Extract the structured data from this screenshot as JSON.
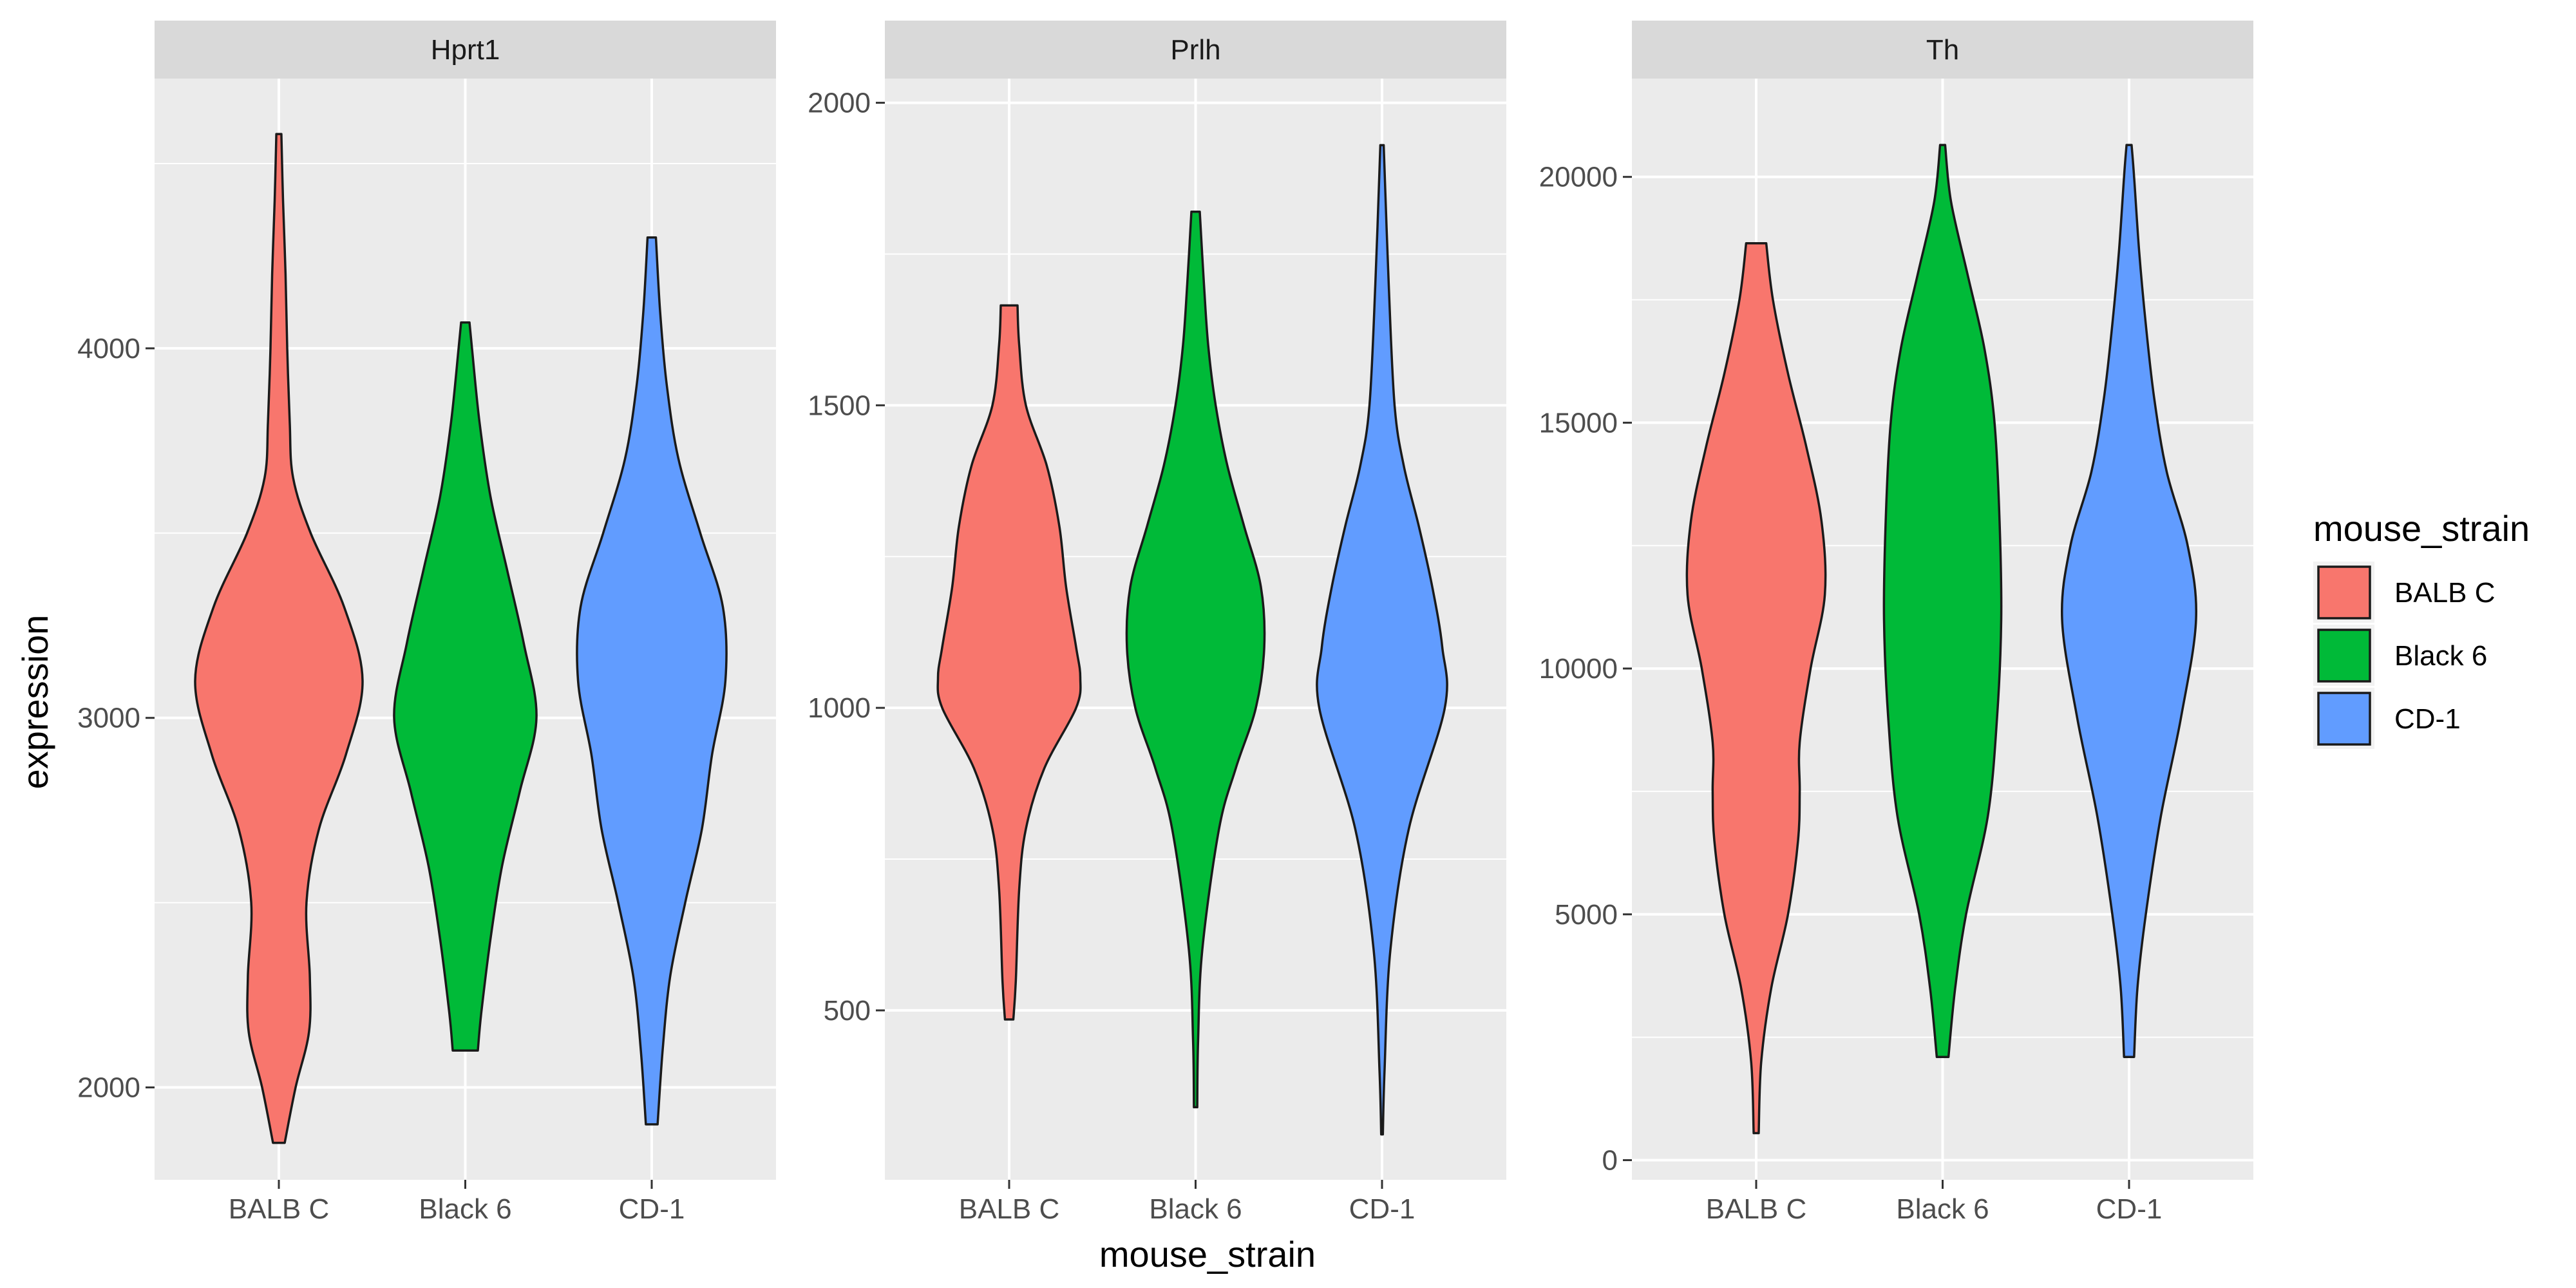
{
  "chart_data": {
    "type": "violin",
    "x_label": "mouse_strain",
    "y_label": "expression",
    "categories": [
      "BALB C",
      "Black 6",
      "CD-1"
    ],
    "legend": {
      "title": "mouse_strain",
      "position": "right",
      "items": [
        {
          "label": "BALB C",
          "color": "#F8766D"
        },
        {
          "label": "Black 6",
          "color": "#00BA38"
        },
        {
          "label": "CD-1",
          "color": "#619CFF"
        }
      ]
    },
    "facets": [
      {
        "title": "Hprt1",
        "ylim": [
          1750,
          4730
        ],
        "major_ticks": [
          2000,
          3000,
          4000
        ],
        "minor_ticks": [
          2500,
          3500,
          4500
        ],
        "violins": [
          {
            "category": "BALB C",
            "min": 1850,
            "max": 4580,
            "profile": [
              [
                1850,
                0.07
              ],
              [
                2000,
                0.2
              ],
              [
                2150,
                0.36
              ],
              [
                2300,
                0.37
              ],
              [
                2500,
                0.33
              ],
              [
                2700,
                0.48
              ],
              [
                2900,
                0.8
              ],
              [
                3100,
                1.0
              ],
              [
                3300,
                0.78
              ],
              [
                3500,
                0.38
              ],
              [
                3650,
                0.17
              ],
              [
                3800,
                0.13
              ],
              [
                4000,
                0.1
              ],
              [
                4200,
                0.08
              ],
              [
                4400,
                0.05
              ],
              [
                4580,
                0.03
              ]
            ]
          },
          {
            "category": "Black 6",
            "min": 2100,
            "max": 4070,
            "profile": [
              [
                2100,
                0.15
              ],
              [
                2200,
                0.19
              ],
              [
                2400,
                0.3
              ],
              [
                2600,
                0.44
              ],
              [
                2800,
                0.65
              ],
              [
                3000,
                0.85
              ],
              [
                3200,
                0.7
              ],
              [
                3400,
                0.5
              ],
              [
                3600,
                0.3
              ],
              [
                3800,
                0.17
              ],
              [
                4000,
                0.08
              ],
              [
                4070,
                0.05
              ]
            ]
          },
          {
            "category": "CD-1",
            "min": 1900,
            "max": 4300,
            "profile": [
              [
                1900,
                0.07
              ],
              [
                2100,
                0.13
              ],
              [
                2300,
                0.22
              ],
              [
                2500,
                0.4
              ],
              [
                2700,
                0.6
              ],
              [
                2900,
                0.72
              ],
              [
                3100,
                0.88
              ],
              [
                3300,
                0.85
              ],
              [
                3500,
                0.58
              ],
              [
                3700,
                0.32
              ],
              [
                3900,
                0.18
              ],
              [
                4100,
                0.1
              ],
              [
                4300,
                0.05
              ]
            ]
          }
        ]
      },
      {
        "title": "Prlh",
        "ylim": [
          220,
          2040
        ],
        "major_ticks": [
          500,
          1000,
          1500,
          2000
        ],
        "minor_ticks": [
          750,
          1250,
          1750
        ],
        "violins": [
          {
            "category": "BALB C",
            "min": 485,
            "max": 1665,
            "profile": [
              [
                485,
                0.05
              ],
              [
                550,
                0.08
              ],
              [
                700,
                0.12
              ],
              [
                800,
                0.2
              ],
              [
                900,
                0.42
              ],
              [
                1000,
                0.8
              ],
              [
                1050,
                0.85
              ],
              [
                1100,
                0.8
              ],
              [
                1200,
                0.68
              ],
              [
                1300,
                0.6
              ],
              [
                1400,
                0.45
              ],
              [
                1500,
                0.2
              ],
              [
                1600,
                0.12
              ],
              [
                1665,
                0.1
              ]
            ]
          },
          {
            "category": "Black 6",
            "min": 340,
            "max": 1820,
            "profile": [
              [
                340,
                0.02
              ],
              [
                450,
                0.03
              ],
              [
                600,
                0.08
              ],
              [
                800,
                0.28
              ],
              [
                900,
                0.48
              ],
              [
                1000,
                0.72
              ],
              [
                1100,
                0.82
              ],
              [
                1200,
                0.78
              ],
              [
                1300,
                0.58
              ],
              [
                1400,
                0.38
              ],
              [
                1500,
                0.24
              ],
              [
                1600,
                0.15
              ],
              [
                1700,
                0.1
              ],
              [
                1820,
                0.05
              ]
            ]
          },
          {
            "category": "CD-1",
            "min": 295,
            "max": 1930,
            "profile": [
              [
                295,
                0.01
              ],
              [
                400,
                0.03
              ],
              [
                600,
                0.1
              ],
              [
                800,
                0.32
              ],
              [
                1000,
                0.75
              ],
              [
                1100,
                0.72
              ],
              [
                1200,
                0.6
              ],
              [
                1300,
                0.44
              ],
              [
                1400,
                0.26
              ],
              [
                1500,
                0.15
              ],
              [
                1700,
                0.08
              ],
              [
                1930,
                0.02
              ]
            ]
          }
        ]
      },
      {
        "title": "Th",
        "ylim": [
          -400,
          22000
        ],
        "major_ticks": [
          0,
          5000,
          10000,
          15000,
          20000
        ],
        "minor_ticks": [
          2500,
          7500,
          12500,
          17500
        ],
        "violins": [
          {
            "category": "BALB C",
            "min": 550,
            "max": 18650,
            "profile": [
              [
                550,
                0.03
              ],
              [
                2000,
                0.06
              ],
              [
                3500,
                0.18
              ],
              [
                5000,
                0.38
              ],
              [
                6500,
                0.5
              ],
              [
                7500,
                0.52
              ],
              [
                8500,
                0.52
              ],
              [
                10000,
                0.65
              ],
              [
                11500,
                0.82
              ],
              [
                13000,
                0.78
              ],
              [
                14500,
                0.6
              ],
              [
                16000,
                0.38
              ],
              [
                17500,
                0.2
              ],
              [
                18650,
                0.12
              ]
            ]
          },
          {
            "category": "Black 6",
            "min": 2100,
            "max": 20650,
            "profile": [
              [
                2100,
                0.07
              ],
              [
                3500,
                0.15
              ],
              [
                5000,
                0.28
              ],
              [
                7000,
                0.54
              ],
              [
                9000,
                0.65
              ],
              [
                11000,
                0.7
              ],
              [
                13000,
                0.68
              ],
              [
                15000,
                0.62
              ],
              [
                16500,
                0.5
              ],
              [
                18000,
                0.3
              ],
              [
                19500,
                0.1
              ],
              [
                20650,
                0.03
              ]
            ]
          },
          {
            "category": "CD-1",
            "min": 2100,
            "max": 20650,
            "profile": [
              [
                2100,
                0.06
              ],
              [
                3500,
                0.1
              ],
              [
                5000,
                0.2
              ],
              [
                7000,
                0.38
              ],
              [
                9000,
                0.62
              ],
              [
                11000,
                0.8
              ],
              [
                12500,
                0.7
              ],
              [
                14000,
                0.45
              ],
              [
                15500,
                0.3
              ],
              [
                17000,
                0.2
              ],
              [
                18500,
                0.12
              ],
              [
                20000,
                0.06
              ],
              [
                20650,
                0.03
              ]
            ]
          }
        ]
      }
    ]
  }
}
